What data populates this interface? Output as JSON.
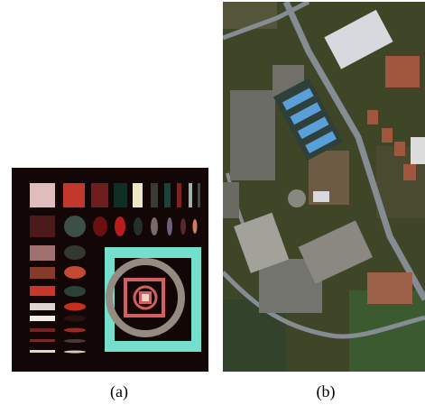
{
  "figure": {
    "panel_a": {
      "caption": "(a)",
      "colors": {
        "background": "#120606",
        "swatches_row1": [
          "#e1bcbc",
          "#c3382c",
          "#6e1e1e",
          "#0f2e25",
          "#ece8c6",
          "#3a3c34",
          "#1d403a",
          "#7c2323",
          "#9fb1ad"
        ],
        "ellipses_row2": [
          "#3c5046",
          "#6b0f0f",
          "#b81c1c",
          "#23302b",
          "#7a6a6a",
          "#6e6276",
          "#ce7f62"
        ],
        "outer_frame": "#73dfcc",
        "inner_ring": "#958b82",
        "inner_square": "#d45f5f",
        "center_square": "#f2d4c4"
      }
    },
    "panel_b": {
      "caption": "(b)",
      "colors": {
        "vegetation": "#3f4628",
        "soil": "#6e5b43",
        "road": "#868c94",
        "roof_red": "#a0573e",
        "roof_white": "#d6dade",
        "roof_blue": "#5aa0d8",
        "field_green": "#3b5a30"
      }
    }
  }
}
